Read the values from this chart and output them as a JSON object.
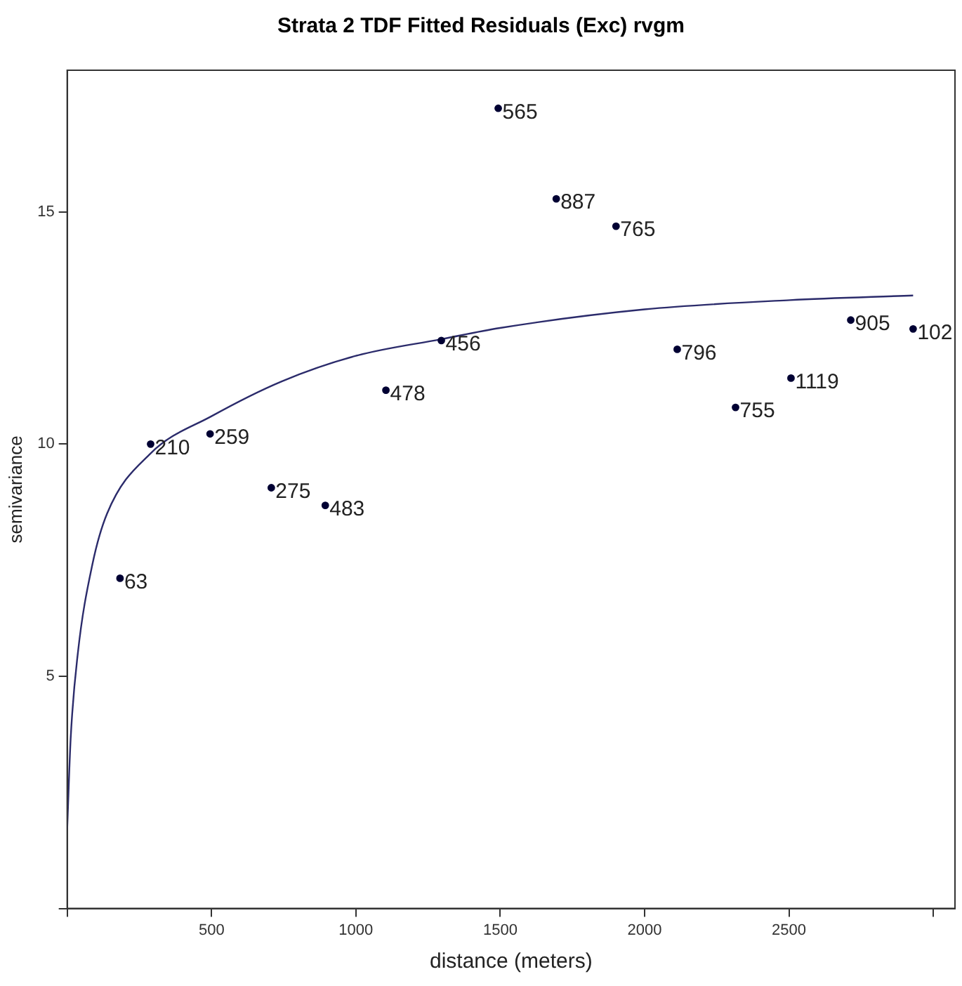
{
  "chart_data": {
    "type": "scatter",
    "title": "Strata 2 TDF Fitted Residuals (Exc) rvgm",
    "xlabel": "distance (meters)",
    "ylabel": "semivariance",
    "xlim": [
      0,
      3075
    ],
    "ylim": [
      0,
      18.05
    ],
    "xticks": [
      {
        "value": 0,
        "label": null
      },
      500,
      1000,
      1500,
      2000,
      2500,
      {
        "value": 3000,
        "label": null
      }
    ],
    "yticks": [
      {
        "value": 0,
        "label": null
      },
      5,
      10,
      15
    ],
    "grid": false,
    "legend": false,
    "marker": "circle",
    "series": [
      {
        "color": "#000033",
        "x": [
          183,
          289,
          495,
          707,
          894,
          1104,
          1296,
          1493,
          1694,
          1901,
          2113,
          2315,
          2507,
          2714,
          2930
        ],
        "values": [
          7.11,
          10.0,
          10.22,
          9.06,
          8.68,
          11.16,
          12.23,
          17.23,
          15.28,
          14.69,
          12.04,
          10.79,
          11.42,
          12.67,
          12.48
        ]
      },
      {
        "type": "line",
        "color": "#2b2b6b",
        "marker": "none",
        "x": [
          0,
          12,
          37,
          87,
          138,
          289,
          500,
          743,
          1000,
          1297,
          1499,
          2000,
          2503,
          2930
        ],
        "values": [
          1.7,
          3.65,
          5.5,
          7.4,
          8.5,
          9.8,
          10.6,
          11.35,
          11.9,
          12.26,
          12.5,
          12.9,
          13.1,
          13.2
        ]
      }
    ],
    "annotations": [
      {
        "text": "63",
        "x": 183,
        "y": 7.11
      },
      {
        "text": "210",
        "x": 289,
        "y": 10.0
      },
      {
        "text": "259",
        "x": 495,
        "y": 10.22
      },
      {
        "text": "275",
        "x": 707,
        "y": 9.06
      },
      {
        "text": "483",
        "x": 894,
        "y": 8.68
      },
      {
        "text": "478",
        "x": 1104,
        "y": 11.16
      },
      {
        "text": "456",
        "x": 1296,
        "y": 12.23
      },
      {
        "text": "565",
        "x": 1493,
        "y": 17.23
      },
      {
        "text": "887",
        "x": 1694,
        "y": 15.28
      },
      {
        "text": "765",
        "x": 1901,
        "y": 14.69
      },
      {
        "text": "796",
        "x": 2113,
        "y": 12.04
      },
      {
        "text": "755",
        "x": 2315,
        "y": 10.79
      },
      {
        "text": "1119",
        "x": 2507,
        "y": 11.42
      },
      {
        "text": "905",
        "x": 2714,
        "y": 12.67
      },
      {
        "text": "102",
        "x": 2930,
        "y": 12.48
      }
    ]
  }
}
